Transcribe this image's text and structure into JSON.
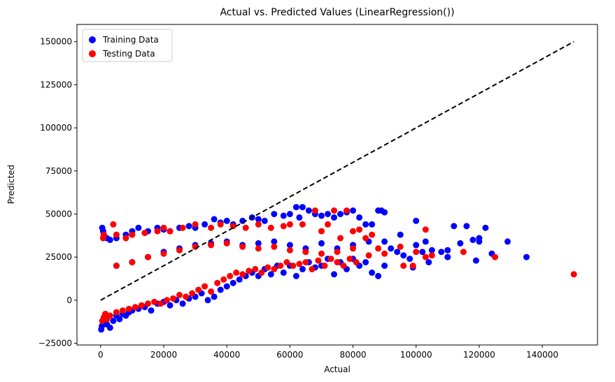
{
  "chart_data": {
    "type": "scatter",
    "title": "Actual vs. Predicted Values (LinearRegression())",
    "xlabel": "Actual",
    "ylabel": "Predicted",
    "xlim": [
      -7500,
      157500
    ],
    "ylim": [
      -26000,
      160000
    ],
    "xticks": [
      0,
      20000,
      40000,
      60000,
      80000,
      100000,
      120000,
      140000
    ],
    "yticks": [
      -25000,
      0,
      25000,
      50000,
      75000,
      100000,
      125000,
      150000
    ],
    "grid": false,
    "legend_position": "top-left",
    "reference_line": {
      "label": "",
      "x": [
        0,
        150000
      ],
      "y": [
        0,
        150000
      ],
      "style": "dashed",
      "color": "#000000"
    },
    "series": [
      {
        "name": "Training Data",
        "color": "#0000ff",
        "points": [
          [
            200,
            -17000
          ],
          [
            400,
            -15000
          ],
          [
            800,
            -12000
          ],
          [
            1200,
            -10000
          ],
          [
            1500,
            -8000
          ],
          [
            2000,
            -14000
          ],
          [
            3000,
            -16000
          ],
          [
            4000,
            -12000
          ],
          [
            5000,
            -9000
          ],
          [
            6000,
            -11000
          ],
          [
            7000,
            -8000
          ],
          [
            8000,
            -9000
          ],
          [
            9000,
            -7000
          ],
          [
            10000,
            -6000
          ],
          [
            12000,
            -5000
          ],
          [
            14000,
            -4000
          ],
          [
            16000,
            -6000
          ],
          [
            18000,
            -2000
          ],
          [
            20000,
            -1000
          ],
          [
            22000,
            -3000
          ],
          [
            24000,
            0
          ],
          [
            26000,
            -2000
          ],
          [
            28000,
            1000
          ],
          [
            30000,
            2000
          ],
          [
            32000,
            4000
          ],
          [
            34000,
            0
          ],
          [
            36000,
            2000
          ],
          [
            38000,
            6000
          ],
          [
            40000,
            8000
          ],
          [
            42000,
            10000
          ],
          [
            44000,
            12000
          ],
          [
            46000,
            14000
          ],
          [
            48000,
            16000
          ],
          [
            50000,
            14000
          ],
          [
            52000,
            18000
          ],
          [
            54000,
            15000
          ],
          [
            56000,
            20000
          ],
          [
            58000,
            16000
          ],
          [
            60000,
            20000
          ],
          [
            62000,
            14000
          ],
          [
            64000,
            18000
          ],
          [
            66000,
            22000
          ],
          [
            68000,
            19000
          ],
          [
            70000,
            20000
          ],
          [
            72000,
            24000
          ],
          [
            74000,
            15000
          ],
          [
            76000,
            22000
          ],
          [
            78000,
            18000
          ],
          [
            80000,
            24000
          ],
          [
            82000,
            20000
          ],
          [
            84000,
            22000
          ],
          [
            86000,
            16000
          ],
          [
            88000,
            14000
          ],
          [
            90000,
            20000
          ],
          [
            500,
            42000
          ],
          [
            800,
            40000
          ],
          [
            1000,
            38000
          ],
          [
            2000,
            36000
          ],
          [
            3000,
            35000
          ],
          [
            5000,
            36000
          ],
          [
            8000,
            38000
          ],
          [
            10000,
            40000
          ],
          [
            12000,
            42000
          ],
          [
            15000,
            40000
          ],
          [
            18000,
            42000
          ],
          [
            20000,
            41000
          ],
          [
            22000,
            40000
          ],
          [
            25000,
            42000
          ],
          [
            28000,
            43000
          ],
          [
            30000,
            42000
          ],
          [
            33000,
            44000
          ],
          [
            36000,
            47000
          ],
          [
            38000,
            45000
          ],
          [
            40000,
            46000
          ],
          [
            42000,
            44000
          ],
          [
            45000,
            46000
          ],
          [
            48000,
            48000
          ],
          [
            50000,
            47000
          ],
          [
            52000,
            46000
          ],
          [
            55000,
            50000
          ],
          [
            58000,
            49000
          ],
          [
            60000,
            50000
          ],
          [
            62000,
            54000
          ],
          [
            63000,
            48000
          ],
          [
            64000,
            54000
          ],
          [
            66000,
            52000
          ],
          [
            68000,
            50000
          ],
          [
            70000,
            49000
          ],
          [
            72000,
            50000
          ],
          [
            74000,
            48000
          ],
          [
            76000,
            50000
          ],
          [
            78000,
            51000
          ],
          [
            80000,
            52000
          ],
          [
            82000,
            48000
          ],
          [
            84000,
            44000
          ],
          [
            86000,
            44000
          ],
          [
            88000,
            52000
          ],
          [
            89000,
            52000
          ],
          [
            90000,
            51000
          ],
          [
            5000,
            20000
          ],
          [
            10000,
            22000
          ],
          [
            15000,
            25000
          ],
          [
            20000,
            28000
          ],
          [
            25000,
            30000
          ],
          [
            30000,
            32000
          ],
          [
            35000,
            33000
          ],
          [
            40000,
            34000
          ],
          [
            45000,
            32000
          ],
          [
            50000,
            33000
          ],
          [
            55000,
            34000
          ],
          [
            60000,
            32000
          ],
          [
            65000,
            30000
          ],
          [
            70000,
            33000
          ],
          [
            75000,
            30000
          ],
          [
            80000,
            32000
          ],
          [
            85000,
            34000
          ],
          [
            90000,
            34000
          ],
          [
            92000,
            30000
          ],
          [
            94000,
            28000
          ],
          [
            95000,
            38000
          ],
          [
            96000,
            26000
          ],
          [
            98000,
            24000
          ],
          [
            99000,
            19000
          ],
          [
            100000,
            32000
          ],
          [
            100000,
            46000
          ],
          [
            102000,
            28000
          ],
          [
            103000,
            34000
          ],
          [
            104000,
            22000
          ],
          [
            105000,
            29000
          ],
          [
            108000,
            28000
          ],
          [
            110000,
            25000
          ],
          [
            110000,
            29000
          ],
          [
            112000,
            43000
          ],
          [
            114000,
            33000
          ],
          [
            116000,
            43000
          ],
          [
            118000,
            35000
          ],
          [
            119000,
            23000
          ],
          [
            120000,
            34000
          ],
          [
            120000,
            36000
          ],
          [
            122000,
            42000
          ],
          [
            124000,
            27000
          ],
          [
            129000,
            34000
          ],
          [
            135000,
            25000
          ]
        ]
      },
      {
        "name": "Testing Data",
        "color": "#ff0000",
        "points": [
          [
            500,
            -12000
          ],
          [
            1000,
            -10000
          ],
          [
            1500,
            -8000
          ],
          [
            2000,
            -11000
          ],
          [
            3000,
            -9000
          ],
          [
            5000,
            -7000
          ],
          [
            7000,
            -6000
          ],
          [
            9000,
            -5000
          ],
          [
            11000,
            -4000
          ],
          [
            13000,
            -3000
          ],
          [
            15000,
            -2000
          ],
          [
            17000,
            -1000
          ],
          [
            19000,
            -2000
          ],
          [
            21000,
            0
          ],
          [
            23000,
            1000
          ],
          [
            25000,
            3000
          ],
          [
            27000,
            2000
          ],
          [
            29000,
            4000
          ],
          [
            31000,
            6000
          ],
          [
            33000,
            8000
          ],
          [
            35000,
            5000
          ],
          [
            37000,
            10000
          ],
          [
            39000,
            12000
          ],
          [
            41000,
            14000
          ],
          [
            43000,
            16000
          ],
          [
            45000,
            15000
          ],
          [
            47000,
            17000
          ],
          [
            49000,
            18000
          ],
          [
            51000,
            16000
          ],
          [
            53000,
            19000
          ],
          [
            55000,
            18000
          ],
          [
            57000,
            20000
          ],
          [
            59000,
            22000
          ],
          [
            61000,
            20000
          ],
          [
            63000,
            21000
          ],
          [
            65000,
            22000
          ],
          [
            67000,
            18000
          ],
          [
            69000,
            23000
          ],
          [
            71000,
            20000
          ],
          [
            73000,
            24000
          ],
          [
            75000,
            22000
          ],
          [
            77000,
            20000
          ],
          [
            79000,
            24000
          ],
          [
            81000,
            22000
          ],
          [
            800,
            36000
          ],
          [
            1000,
            38000
          ],
          [
            4000,
            44000
          ],
          [
            5000,
            38000
          ],
          [
            8000,
            36000
          ],
          [
            10000,
            38000
          ],
          [
            14000,
            39000
          ],
          [
            18000,
            40000
          ],
          [
            20000,
            42000
          ],
          [
            22000,
            40000
          ],
          [
            26000,
            42000
          ],
          [
            30000,
            44000
          ],
          [
            35000,
            42000
          ],
          [
            38000,
            44000
          ],
          [
            42000,
            43000
          ],
          [
            46000,
            42000
          ],
          [
            50000,
            44000
          ],
          [
            54000,
            42000
          ],
          [
            58000,
            43000
          ],
          [
            60000,
            44000
          ],
          [
            64000,
            44000
          ],
          [
            68000,
            52000
          ],
          [
            70000,
            40000
          ],
          [
            72000,
            44000
          ],
          [
            74000,
            52000
          ],
          [
            76000,
            36000
          ],
          [
            78000,
            52000
          ],
          [
            80000,
            40000
          ],
          [
            82000,
            41000
          ],
          [
            84000,
            36000
          ],
          [
            86000,
            38000
          ],
          [
            88000,
            30000
          ],
          [
            5000,
            20000
          ],
          [
            10000,
            22000
          ],
          [
            15000,
            25000
          ],
          [
            20000,
            27000
          ],
          [
            25000,
            29000
          ],
          [
            30000,
            31000
          ],
          [
            35000,
            32000
          ],
          [
            40000,
            33000
          ],
          [
            45000,
            31000
          ],
          [
            50000,
            30000
          ],
          [
            55000,
            31000
          ],
          [
            60000,
            29000
          ],
          [
            65000,
            28000
          ],
          [
            70000,
            27000
          ],
          [
            75000,
            28000
          ],
          [
            80000,
            30000
          ],
          [
            85000,
            26000
          ],
          [
            90000,
            27000
          ],
          [
            95000,
            31000
          ],
          [
            96000,
            20000
          ],
          [
            99000,
            20000
          ],
          [
            100000,
            28000
          ],
          [
            103000,
            41000
          ],
          [
            103000,
            25000
          ],
          [
            105000,
            26000
          ],
          [
            115000,
            28000
          ],
          [
            125000,
            25000
          ],
          [
            150000,
            15000
          ]
        ]
      }
    ]
  }
}
